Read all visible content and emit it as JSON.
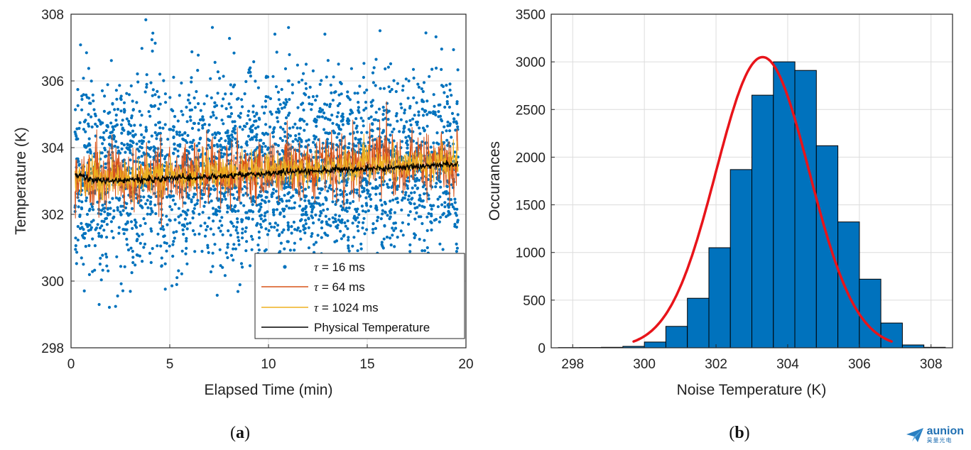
{
  "colors": {
    "blue": "#0072BD",
    "orange": "#D95319",
    "yellow": "#EDB120",
    "black": "#000000",
    "fit_red": "#E8141A",
    "bar_fill": "#0072BD",
    "grid": "#dcdcdc"
  },
  "chart_data": [
    {
      "type": "scatter",
      "panel": "(a)",
      "caption_letter": "a",
      "xlabel": "Elapsed Time (min)",
      "ylabel": "Temperature (K)",
      "xlim": [
        0,
        20
      ],
      "ylim": [
        298,
        308
      ],
      "xticks": [
        0,
        5,
        10,
        15,
        20
      ],
      "yticks": [
        298,
        300,
        302,
        304,
        306,
        308
      ],
      "grid": true,
      "legend_position": "bottom-right",
      "series": [
        {
          "name": "τ = 16 ms",
          "legend_prefix": "τ",
          "legend_rest": " = 16 ms",
          "style": "markers",
          "color": "#0072BD",
          "t_range": [
            0.2,
            19.6
          ],
          "mean_start": 303.1,
          "mean_end": 303.5,
          "std": 1.4,
          "observed_min": 299.2,
          "observed_max": 307.9,
          "approx_points": 3000
        },
        {
          "name": "τ = 64 ms",
          "legend_prefix": "τ",
          "legend_rest": " = 64 ms",
          "style": "line",
          "color": "#D95319",
          "t_range": [
            0.2,
            19.6
          ],
          "mean_start": 303.05,
          "mean_end": 303.6,
          "std": 0.5
        },
        {
          "name": "τ = 1024 ms",
          "legend_prefix": "τ",
          "legend_rest": " = 1024 ms",
          "style": "line",
          "color": "#EDB120",
          "t_range": [
            0.2,
            19.6
          ],
          "mean_start": 303.05,
          "mean_end": 303.55,
          "std": 0.25
        },
        {
          "name": "Physical Temperature",
          "legend_prefix": "",
          "legend_rest": "Physical Temperature",
          "style": "line",
          "color": "#000000",
          "x": [
            0.2,
            1,
            2,
            4,
            6,
            8,
            10,
            12,
            14,
            16,
            18,
            19.6
          ],
          "y": [
            303.2,
            303.05,
            303.0,
            303.05,
            303.1,
            303.15,
            303.25,
            303.3,
            303.35,
            303.4,
            303.45,
            303.5
          ]
        }
      ]
    },
    {
      "type": "bar",
      "panel": "(b)",
      "caption_letter": "b",
      "xlabel": "Noise Temperature (K)",
      "ylabel": "Occurances",
      "xlim": [
        297.4,
        308.6
      ],
      "ylim": [
        0,
        3500
      ],
      "xticks": [
        298,
        300,
        302,
        304,
        306,
        308
      ],
      "yticks": [
        0,
        500,
        1000,
        1500,
        2000,
        2500,
        3000,
        3500
      ],
      "grid": true,
      "bin_edges": [
        297.6,
        298.2,
        298.8,
        299.4,
        300.0,
        300.6,
        301.2,
        301.8,
        302.4,
        303.0,
        303.6,
        304.2,
        304.8,
        305.4,
        306.0,
        306.6,
        307.2,
        307.8,
        308.4
      ],
      "counts": [
        2,
        3,
        5,
        15,
        60,
        225,
        520,
        1050,
        1870,
        2650,
        3000,
        2910,
        2120,
        1320,
        720,
        260,
        30,
        5
      ],
      "fit": {
        "type": "gaussian",
        "mu": 303.3,
        "sigma": 1.3,
        "peak": 3050,
        "x_range": [
          299.7,
          306.9
        ],
        "color": "#E8141A"
      }
    }
  ],
  "logo": {
    "word": "aunion",
    "sub": "昊量光电"
  }
}
